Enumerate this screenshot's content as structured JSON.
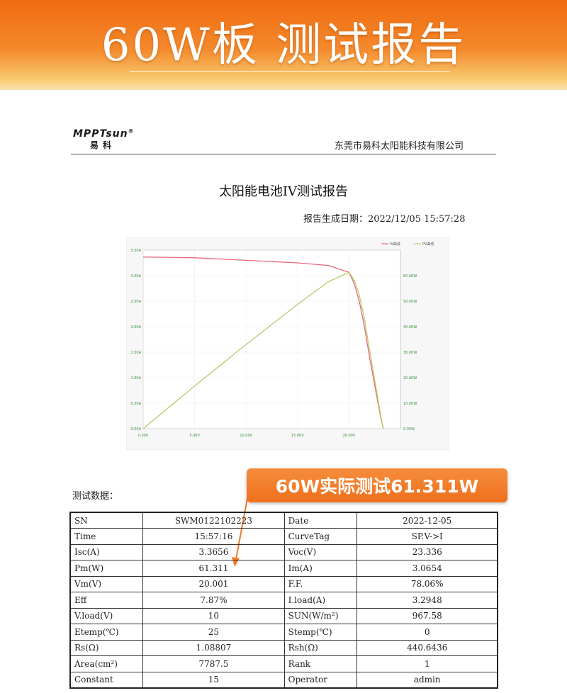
{
  "banner": {
    "title": "60W板 测试报告"
  },
  "header": {
    "logo_text": "MPPTsun",
    "logo_mark": "®",
    "logo_sub": "易科",
    "company": "东莞市易科太阳能科技有限公司"
  },
  "report": {
    "title": "太阳能电池IV测试报告",
    "date_label": "报告生成日期：",
    "date_value": "2022/12/05  15:57:28"
  },
  "chart_data": {
    "type": "line",
    "legend_placement": "top-right",
    "grid": true,
    "x_ticks": [
      "0.00V",
      "5.00V",
      "10.00V",
      "15.00V",
      "20.00V"
    ],
    "xlim": [
      0,
      25
    ],
    "y_left_ticks": [
      "0.00A",
      "0.50A",
      "1.00A",
      "1.50A",
      "2.00A",
      "2.50A",
      "3.00A",
      "3.50A"
    ],
    "y_left_range": [
      0,
      3.5
    ],
    "y_right_ticks": [
      "0.00W",
      "10.00W",
      "20.00W",
      "30.00W",
      "40.00W",
      "50.00W",
      "60.00W"
    ],
    "y_right_range": [
      0,
      70
    ],
    "series": [
      {
        "name": "IV曲线",
        "color": "#e8677a",
        "axis": "left",
        "x": [
          0,
          5,
          10,
          15,
          18,
          20,
          20.5,
          21,
          21.5,
          22,
          22.5,
          23,
          23.336
        ],
        "y": [
          3.3656,
          3.35,
          3.3,
          3.25,
          3.2,
          3.0654,
          2.85,
          2.5,
          2.0,
          1.4,
          0.85,
          0.3,
          0
        ]
      },
      {
        "name": "PV曲线",
        "color": "#b7c96b",
        "axis": "right",
        "x": [
          0,
          5,
          10,
          15,
          18,
          20,
          20.5,
          21,
          21.5,
          22,
          22.5,
          23,
          23.336
        ],
        "y": [
          0,
          16.75,
          33.0,
          48.75,
          57.6,
          61.311,
          58.4,
          52.5,
          43.0,
          30.8,
          19.1,
          6.9,
          0
        ]
      }
    ]
  },
  "data_section": {
    "caption": "测试数据："
  },
  "callout": {
    "text": "60W实际测试61.311W",
    "color": "#ef6f1c"
  },
  "table": {
    "rows": [
      [
        "SN",
        "SWM0122102223",
        "Date",
        "2022-12-05"
      ],
      [
        "Time",
        "15:57:16",
        "CurveTag",
        "SP.V->I"
      ],
      [
        "Isc(A)",
        "3.3656",
        "Voc(V)",
        "23.336"
      ],
      [
        "Pm(W)",
        "61.311",
        "Im(A)",
        "3.0654"
      ],
      [
        "Vm(V)",
        "20.001",
        "F.F.",
        "78.06%"
      ],
      [
        "Eff",
        "7.87%",
        "I.load(A)",
        "3.2948"
      ],
      [
        "V.load(V)",
        "10",
        "SUN(W/m²)",
        "967.58"
      ],
      [
        "Etemp(℃)",
        "25",
        "Stemp(℃)",
        "0"
      ],
      [
        "Rs(Ω)",
        "1.08807",
        "Rsh(Ω)",
        "440.6436"
      ],
      [
        "Area(cm²)",
        "7787.5",
        "Rank",
        "1"
      ],
      [
        "Constant",
        "15",
        "Operator",
        "admin"
      ]
    ]
  }
}
